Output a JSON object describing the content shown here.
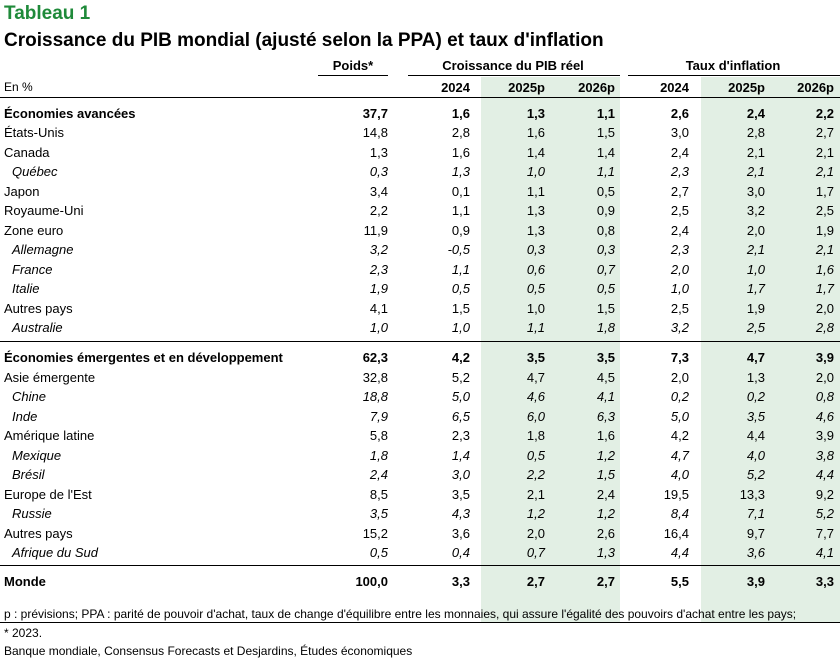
{
  "title": "Tableau 1",
  "subtitle": "Croissance du PIB mondial (ajusté selon la PPA) et taux d'inflation",
  "header": {
    "unit": "En %",
    "weight": "Poids*",
    "growth_group": "Croissance du PIB réel",
    "inflation_group": "Taux d'inflation",
    "years": [
      "2024",
      "2025p",
      "2026p",
      "2024",
      "2025p",
      "2026p"
    ]
  },
  "colors": {
    "title": "#1f8a3a",
    "shade": "#e2efe4"
  },
  "rows": [
    {
      "label": "Économies avancées",
      "style": "bold",
      "values": [
        "37,7",
        "1,6",
        "1,3",
        "1,1",
        "2,6",
        "2,4",
        "2,2"
      ]
    },
    {
      "label": "États-Unis",
      "style": "normal",
      "values": [
        "14,8",
        "2,8",
        "1,6",
        "1,5",
        "3,0",
        "2,8",
        "2,7"
      ]
    },
    {
      "label": "Canada",
      "style": "normal",
      "values": [
        "1,3",
        "1,6",
        "1,4",
        "1,4",
        "2,4",
        "2,1",
        "2,1"
      ]
    },
    {
      "label": "Québec",
      "style": "sub",
      "values": [
        "0,3",
        "1,3",
        "1,0",
        "1,1",
        "2,3",
        "2,1",
        "2,1"
      ]
    },
    {
      "label": "Japon",
      "style": "normal",
      "values": [
        "3,4",
        "0,1",
        "1,1",
        "0,5",
        "2,7",
        "3,0",
        "1,7"
      ]
    },
    {
      "label": "Royaume-Uni",
      "style": "normal",
      "values": [
        "2,2",
        "1,1",
        "1,3",
        "0,9",
        "2,5",
        "3,2",
        "2,5"
      ]
    },
    {
      "label": "Zone euro",
      "style": "normal",
      "values": [
        "11,9",
        "0,9",
        "1,3",
        "0,8",
        "2,4",
        "2,0",
        "1,9"
      ]
    },
    {
      "label": "Allemagne",
      "style": "sub",
      "values": [
        "3,2",
        "-0,5",
        "0,3",
        "0,3",
        "2,3",
        "2,1",
        "2,1"
      ]
    },
    {
      "label": "France",
      "style": "sub",
      "values": [
        "2,3",
        "1,1",
        "0,6",
        "0,7",
        "2,0",
        "1,0",
        "1,6"
      ]
    },
    {
      "label": "Italie",
      "style": "sub",
      "values": [
        "1,9",
        "0,5",
        "0,5",
        "0,5",
        "1,0",
        "1,7",
        "1,7"
      ]
    },
    {
      "label": "Autres pays",
      "style": "normal",
      "values": [
        "4,1",
        "1,5",
        "1,0",
        "1,5",
        "2,5",
        "1,9",
        "2,0"
      ]
    },
    {
      "label": "Australie",
      "style": "sub",
      "values": [
        "1,0",
        "1,0",
        "1,1",
        "1,8",
        "3,2",
        "2,5",
        "2,8"
      ]
    },
    {
      "label": "Économies émergentes et en développement",
      "style": "bold",
      "values": [
        "62,3",
        "4,2",
        "3,5",
        "3,5",
        "7,3",
        "4,7",
        "3,9"
      ]
    },
    {
      "label": "Asie émergente",
      "style": "normal",
      "values": [
        "32,8",
        "5,2",
        "4,7",
        "4,5",
        "2,0",
        "1,3",
        "2,0"
      ]
    },
    {
      "label": "Chine",
      "style": "sub",
      "values": [
        "18,8",
        "5,0",
        "4,6",
        "4,1",
        "0,2",
        "0,2",
        "0,8"
      ]
    },
    {
      "label": "Inde",
      "style": "sub",
      "values": [
        "7,9",
        "6,5",
        "6,0",
        "6,3",
        "5,0",
        "3,5",
        "4,6"
      ]
    },
    {
      "label": "Amérique latine",
      "style": "normal",
      "values": [
        "5,8",
        "2,3",
        "1,8",
        "1,6",
        "4,2",
        "4,4",
        "3,9"
      ]
    },
    {
      "label": "Mexique",
      "style": "sub",
      "values": [
        "1,8",
        "1,4",
        "0,5",
        "1,2",
        "4,7",
        "4,0",
        "3,8"
      ]
    },
    {
      "label": "Brésil",
      "style": "sub",
      "values": [
        "2,4",
        "3,0",
        "2,2",
        "1,5",
        "4,0",
        "5,2",
        "4,4"
      ]
    },
    {
      "label": "Europe de l'Est",
      "style": "normal",
      "values": [
        "8,5",
        "3,5",
        "2,1",
        "2,4",
        "19,5",
        "13,3",
        "9,2"
      ]
    },
    {
      "label": "Russie",
      "style": "sub",
      "values": [
        "3,5",
        "4,3",
        "1,2",
        "1,2",
        "8,4",
        "7,1",
        "5,2"
      ]
    },
    {
      "label": "Autres pays",
      "style": "normal",
      "values": [
        "15,2",
        "3,6",
        "2,0",
        "2,6",
        "16,4",
        "9,7",
        "7,7"
      ]
    },
    {
      "label": "Afrique du Sud",
      "style": "sub",
      "values": [
        "0,5",
        "0,4",
        "0,7",
        "1,3",
        "4,4",
        "3,6",
        "4,1"
      ]
    },
    {
      "label": "Monde",
      "style": "bold",
      "values": [
        "100,0",
        "3,3",
        "2,7",
        "2,7",
        "5,5",
        "3,9",
        "3,3"
      ]
    }
  ],
  "footnotes": {
    "line1": "p : prévisions; PPA : parité de pouvoir d'achat, taux de change d'équilibre entre les monnaies, qui assure l'égalité des pouvoirs d'achat entre les pays;",
    "line2": "* 2023.",
    "source": "Banque mondiale, Consensus Forecasts et Desjardins, Études économiques"
  }
}
